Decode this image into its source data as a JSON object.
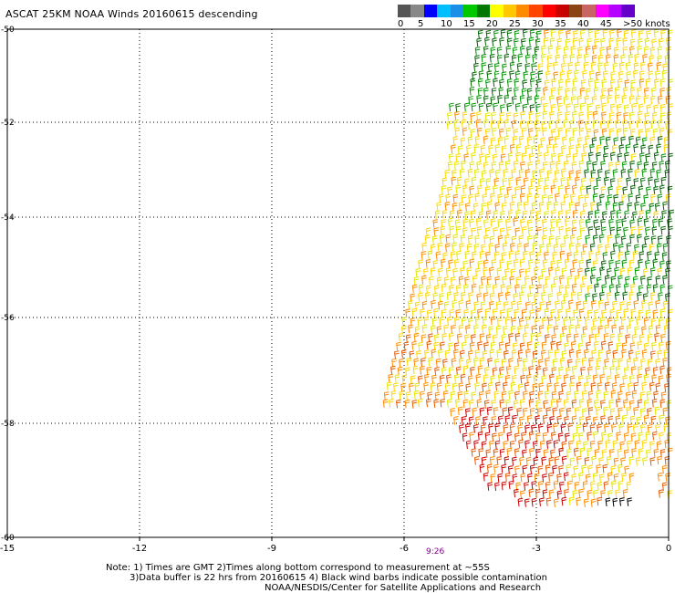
{
  "title": "ASCAT 25KM NOAA Winds 20160615 descending",
  "legend": {
    "colors": [
      "#555555",
      "#888888",
      "#0000ff",
      "#00bfff",
      "#1a8fe6",
      "#00c800",
      "#007800",
      "#ffff00",
      "#ffc800",
      "#ff8c00",
      "#ff4500",
      "#ff0000",
      "#c80000",
      "#8b4513",
      "#c86464",
      "#ff00ff",
      "#b400ff",
      "#6400c8"
    ],
    "ticks": [
      "0",
      "5",
      "10",
      "15",
      "20",
      "25",
      "30",
      "35",
      "40",
      "45",
      ">50 knots"
    ]
  },
  "map": {
    "x_ticks": [
      "-15",
      "-12",
      "-9",
      "-6",
      "-3",
      "0"
    ],
    "y_ticks": [
      "-50",
      "-52",
      "-54",
      "-56",
      "-58",
      "-60"
    ],
    "time_label": "9:26",
    "barb_colors": {
      "green_dark": "#006400",
      "green": "#009600",
      "yellow": "#ffd700",
      "yellow_light": "#e6e600",
      "orange": "#ff8c00",
      "orange_red": "#e65a00",
      "red": "#c80000",
      "black": "#000000"
    }
  },
  "notes": {
    "line1": "Note: 1) Times are GMT 2)Times along bottom correspond to measurement at ~55S",
    "line2": "3)Data buffer is 22 hrs from 20160615 4) Black wind barbs indicate possible contamination",
    "line3": "NOAA/NESDIS/Center for Satellite Applications and Research"
  }
}
